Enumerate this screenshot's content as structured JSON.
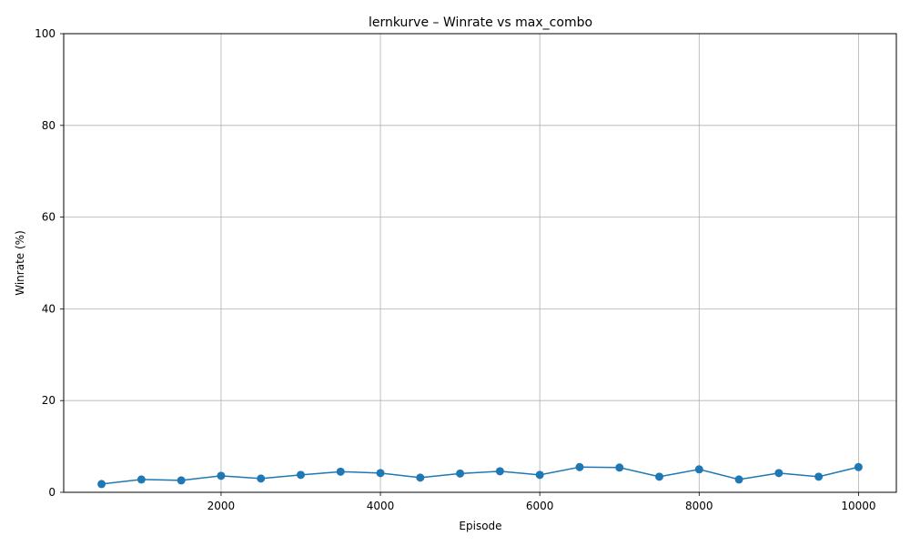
{
  "chart_data": {
    "type": "line",
    "title": "lernkurve – Winrate vs max_combo",
    "xlabel": "Episode",
    "ylabel": "Winrate (%)",
    "xlim": [
      25,
      10475
    ],
    "ylim": [
      0,
      100
    ],
    "x_ticks": [
      2000,
      4000,
      6000,
      8000,
      10000
    ],
    "y_ticks": [
      0,
      20,
      40,
      60,
      80,
      100
    ],
    "grid": true,
    "legend": "none",
    "series": [
      {
        "color": "#1f77b4",
        "marker": "circle",
        "x": [
          500,
          1000,
          1500,
          2000,
          2500,
          3000,
          3500,
          4000,
          4500,
          5000,
          5500,
          6000,
          6500,
          7000,
          7500,
          8000,
          8500,
          9000,
          9500,
          10000
        ],
        "y": [
          1.8,
          2.8,
          2.6,
          3.6,
          3.0,
          3.8,
          4.5,
          4.2,
          3.2,
          4.1,
          4.6,
          3.8,
          5.5,
          5.4,
          3.4,
          5.0,
          2.8,
          4.2,
          3.4,
          5.5
        ]
      }
    ]
  }
}
